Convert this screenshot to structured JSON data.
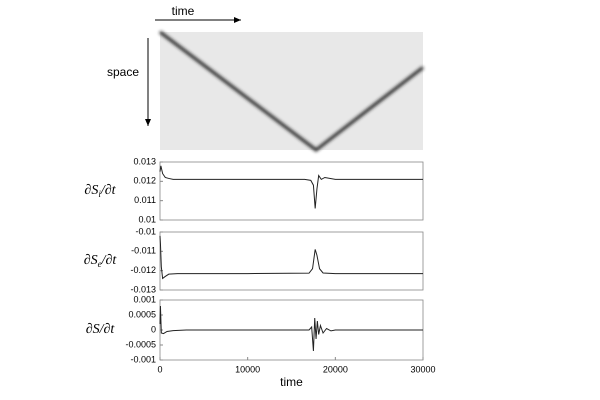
{
  "chart_data": [
    {
      "type": "image",
      "xlabel": "time",
      "ylabel": "space",
      "xlim": [
        0,
        30000
      ],
      "ylim": [
        0,
        1
      ],
      "x": [
        0,
        17800,
        30000
      ],
      "values": [
        0,
        1,
        0.3
      ]
    },
    {
      "type": "line",
      "ylabel": [
        "∂S",
        "i",
        "/∂t"
      ],
      "xlim": [
        0,
        30000
      ],
      "ylim": [
        0.01,
        0.013
      ],
      "yticks": [
        0.01,
        0.011,
        0.012,
        0.013
      ],
      "x": [
        0,
        100,
        300,
        600,
        1000,
        1500,
        3000,
        10000,
        16500,
        17200,
        17500,
        17700,
        17900,
        18100,
        18400,
        18800,
        20000,
        25000,
        30000
      ],
      "values": [
        0.0125,
        0.0128,
        0.0124,
        0.0122,
        0.01215,
        0.0121,
        0.0121,
        0.0121,
        0.0121,
        0.01205,
        0.0118,
        0.0106,
        0.0116,
        0.0123,
        0.0121,
        0.0122,
        0.0121,
        0.0121,
        0.0121
      ]
    },
    {
      "type": "line",
      "ylabel": [
        "∂S",
        "e",
        "/∂t"
      ],
      "xlim": [
        0,
        30000
      ],
      "ylim": [
        -0.013,
        -0.01
      ],
      "yticks": [
        -0.013,
        -0.012,
        -0.011,
        -0.01
      ],
      "x": [
        0,
        50,
        150,
        300,
        600,
        1000,
        2000,
        10000,
        17000,
        17400,
        17700,
        17900,
        18200,
        18600,
        20000,
        30000
      ],
      "values": [
        -0.0102,
        -0.0106,
        -0.0118,
        -0.0124,
        -0.0123,
        -0.01218,
        -0.01215,
        -0.01215,
        -0.01213,
        -0.0119,
        -0.0109,
        -0.0112,
        -0.0119,
        -0.01212,
        -0.01215,
        -0.01215
      ]
    },
    {
      "type": "line",
      "ylabel": [
        "∂S",
        "",
        "/∂t"
      ],
      "xlabel": "time",
      "xlim": [
        0,
        30000
      ],
      "xticks": [
        0,
        10000,
        20000,
        30000
      ],
      "ylim": [
        -0.001,
        0.001
      ],
      "yticks": [
        -0.001,
        -0.0005,
        0,
        0.0005,
        0.001
      ],
      "x": [
        0,
        50,
        150,
        400,
        800,
        1500,
        3000,
        10000,
        17000,
        17300,
        17500,
        17650,
        17800,
        17950,
        18100,
        18300,
        18600,
        19000,
        19500,
        20000,
        30000
      ],
      "values": [
        0.0002,
        0.0008,
        -0.0001,
        -0.00012,
        -5e-05,
        -2e-05,
        0,
        0,
        0,
        0.0001,
        -0.0007,
        0.0004,
        -0.0003,
        0.0003,
        -0.00015,
        0.00015,
        -0.0001,
        5e-05,
        -3e-05,
        0,
        0
      ]
    }
  ]
}
